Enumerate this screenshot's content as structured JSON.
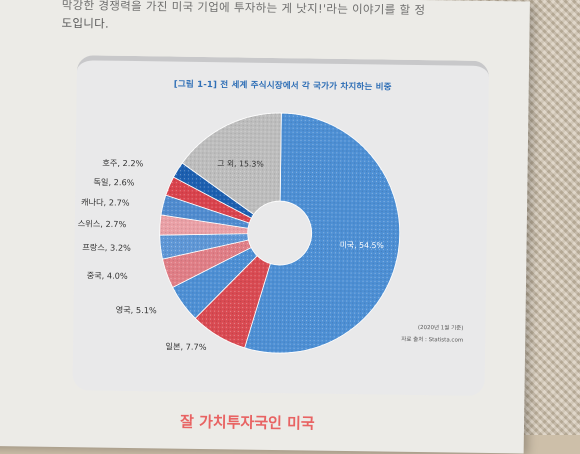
{
  "page": {
    "line1": "막강한 경쟁력을 가진 미국 기업에 투자하는 게 낫지!'라는 이야기를 할 정",
    "line2": "도입니다.",
    "bottom_heading": "잘 가치투자국인 미국"
  },
  "figure": {
    "caption": "[그림 1-1] 전 세계 주식시장에서 각 국가가 차지하는 비중",
    "date_note": "(2020년 1월 기준)",
    "source": "자료 출처 : Statista.com"
  },
  "chart_data": {
    "type": "pie",
    "title": "[그림 1-1] 전 세계 주식시장에서 각 국가가 차지하는 비중",
    "donut": true,
    "slices": [
      {
        "label": "미국",
        "value": 54.5,
        "text": "미국, 54.5%",
        "color": "#4d8fd4"
      },
      {
        "label": "일본",
        "value": 7.7,
        "text": "일본, 7.7%",
        "color": "#d94a52"
      },
      {
        "label": "영국",
        "value": 5.1,
        "text": "영국, 5.1%",
        "color": "#4d8fd4"
      },
      {
        "label": "중국",
        "value": 4.0,
        "text": "중국, 4.0%",
        "color": "#e07e86"
      },
      {
        "label": "프랑스",
        "value": 3.2,
        "text": "프랑스, 3.2%",
        "color": "#5f97d6"
      },
      {
        "label": "스위스",
        "value": 2.7,
        "text": "스위스, 2.7%",
        "color": "#eaa0a6"
      },
      {
        "label": "캐나다",
        "value": 2.7,
        "text": "캐나다, 2.7%",
        "color": "#4f8bcf"
      },
      {
        "label": "독일",
        "value": 2.6,
        "text": "독일, 2.6%",
        "color": "#d9424c"
      },
      {
        "label": "호주",
        "value": 2.2,
        "text": "호주, 2.2%",
        "color": "#1c5fb0"
      },
      {
        "label": "그 외",
        "value": 15.3,
        "text": "그 외, 15.3%",
        "color": "#bdbdbd"
      }
    ]
  }
}
